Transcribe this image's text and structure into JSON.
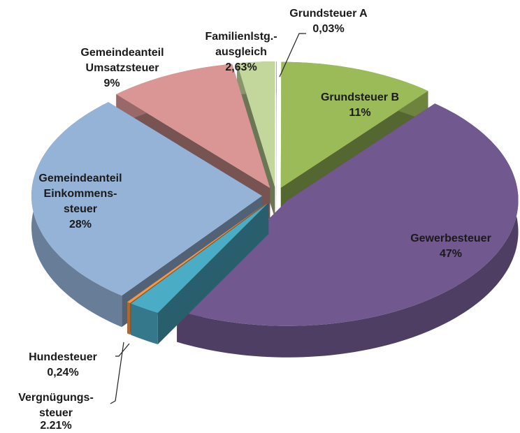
{
  "chart_data": {
    "type": "pie3d",
    "categories": [
      "Grundsteuer A",
      "Grundsteuer B",
      "Gewerbesteuer",
      "Vergnügungs-\nsteuer",
      "Hundesteuer",
      "Gemeindeanteil\nEinkommens-\nsteuer",
      "Gemeindeanteil\nUmsatzsteuer",
      "Familienlstg.-\nausgleich"
    ],
    "values": [
      0.03,
      11,
      47,
      2.21,
      0.24,
      28,
      9,
      2.63
    ],
    "value_labels": [
      "0,03%",
      "11%",
      "47%",
      "2.21%",
      "0,24%",
      "28%",
      "9%",
      "2,63%"
    ],
    "colors": [
      "#e06666",
      "#9bbb59",
      "#71588f",
      "#4bacc6",
      "#f79646",
      "#95b3d7",
      "#d99694",
      "#c3d69b"
    ]
  }
}
